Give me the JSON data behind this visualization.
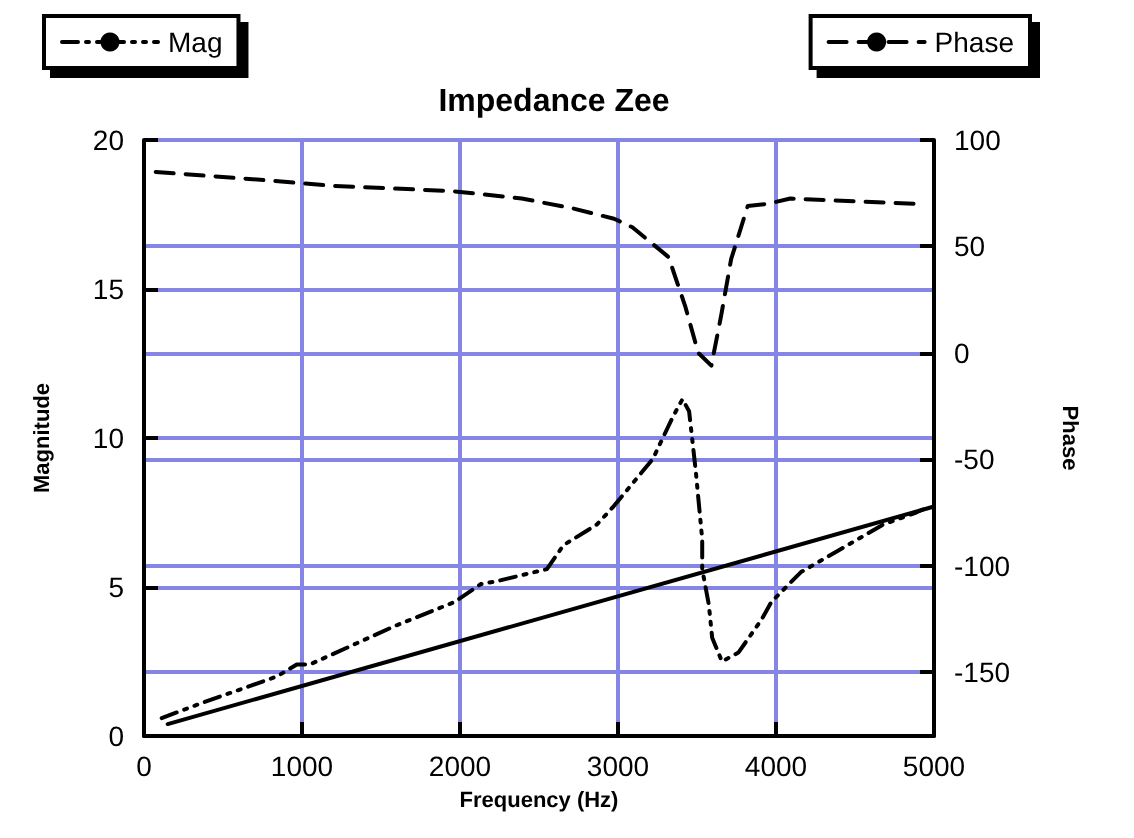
{
  "chart_data": {
    "type": "line",
    "title": "Impedance Zee",
    "xlabel": "Frequency (Hz)",
    "ylabel": "Magnitude",
    "y2label": "Phase",
    "xlim": [
      0,
      5000
    ],
    "xticks": [
      0,
      1000,
      2000,
      3000,
      4000,
      5000
    ],
    "ylim": [
      0,
      20
    ],
    "yticks": [
      0,
      5,
      10,
      15,
      20
    ],
    "y2lim": [
      -180,
      100
    ],
    "y2ticks": [
      -150,
      -100,
      -50,
      0,
      50,
      100
    ],
    "grid": true,
    "legend": "top",
    "marker": "none",
    "series": [
      {
        "name": "Mag",
        "color": "#000000",
        "line_style": "dotted",
        "x": [
          112,
          362,
          842,
          967,
          1050,
          1383,
          1592,
          1967,
          2133,
          2237,
          2550,
          2654,
          2867,
          2971,
          3221,
          3346,
          3408,
          3450,
          3492,
          3533,
          3533,
          3575,
          3596,
          3658,
          3762,
          3908,
          3971,
          4158,
          4387,
          4679,
          4887,
          4929
        ],
        "values": [
          0.6,
          1.1,
          2.0,
          2.4,
          2.4,
          3.2,
          3.7,
          4.5,
          5.1,
          5.2,
          5.6,
          6.4,
          7.1,
          7.7,
          9.3,
          10.7,
          11.3,
          10.9,
          8.9,
          6.6,
          5.6,
          4.4,
          3.3,
          2.5,
          2.8,
          3.9,
          4.5,
          5.5,
          6.2,
          7.1,
          7.5,
          7.6
        ]
      },
      {
        "name": "Phase",
        "color": "#000000",
        "line_style": "dashed",
        "axis": "y2",
        "x": [
          74,
          788,
          1190,
          1949,
          2391,
          2706,
          2975,
          3091,
          3320,
          3425,
          3508,
          3591,
          3654,
          3716,
          3821,
          3946,
          4091,
          4883
        ],
        "values": [
          85,
          81,
          78.5,
          76,
          72.5,
          68,
          63,
          59,
          45,
          22,
          0,
          -6,
          18,
          44,
          69,
          70,
          72.5,
          70
        ]
      },
      {
        "color": "#000000",
        "line_style": "solid",
        "x": [
          150,
          5000
        ],
        "values": [
          0.4,
          7.7
        ]
      }
    ]
  }
}
